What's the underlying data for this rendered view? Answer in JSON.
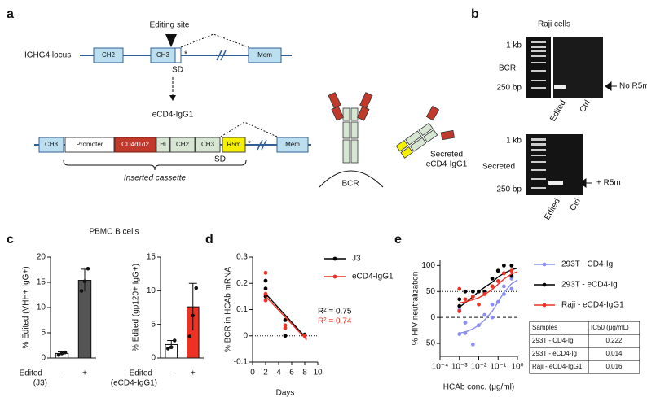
{
  "panel_a": {
    "label": "a",
    "editing_site": "Editing site",
    "locus": "IGHG4 locus",
    "locus_exons": [
      "CH2",
      "CH3",
      "Mem"
    ],
    "stop": "*",
    "sd_top": "SD",
    "product": "eCD4-IgG1",
    "cassette_segments": [
      "CH3",
      "Promoter",
      "CD4d1d2",
      "Hi",
      "CH2",
      "CH3",
      "R5m",
      "Mem"
    ],
    "sd_bottom": "SD",
    "cassette_label": "Inserted cassette",
    "bcr": "BCR",
    "secreted": [
      "Secreted",
      "eCD4-IgG1"
    ]
  },
  "panel_b": {
    "label": "b",
    "title": "Raji cells",
    "gels": [
      {
        "ladder_top": "1 kb",
        "row_label": "BCR",
        "ladder_bottom": "250 bp",
        "band_label": "No R5m",
        "lanes": [
          "Edited",
          "Ctrl"
        ]
      },
      {
        "ladder_top": "1 kb",
        "row_label": "Secreted",
        "ladder_bottom": "250 bp",
        "band_label": "+ R5m",
        "lanes": [
          "Edited",
          "Ctrl"
        ]
      }
    ]
  },
  "panel_c": {
    "label": "c",
    "title": "PBMC B cells"
  },
  "panel_d": {
    "label": "d"
  },
  "panel_e": {
    "label": "e"
  },
  "chart_data": [
    {
      "type": "bar",
      "y_label": "% Edited (VHH+ IgG+)",
      "x_label": "Edited",
      "x_sublabel": "(J3)",
      "categories": [
        "-",
        "+"
      ],
      "values": [
        0.9,
        15.4
      ],
      "errors": [
        0.3,
        2.2
      ],
      "points": [
        [
          0.6,
          0.9,
          1.1
        ],
        [
          13.3,
          15.2,
          17.7
        ]
      ],
      "colors": [
        "#ffffff",
        "#555555"
      ],
      "ylim": [
        0,
        20
      ],
      "yticks": [
        0,
        5,
        10,
        15,
        20
      ]
    },
    {
      "type": "bar",
      "y_label": "% Edited (gp120+ IgG+)",
      "x_label": "Edited",
      "x_sublabel": "(eCD4-IgG1)",
      "categories": [
        "-",
        "+"
      ],
      "values": [
        2.0,
        7.6
      ],
      "errors": [
        0.6,
        3.5
      ],
      "points": [
        [
          1.4,
          1.6,
          2.6
        ],
        [
          3.2,
          6.3,
          10.4
        ]
      ],
      "colors": [
        "#ffffff",
        "#ee3124"
      ],
      "ylim": [
        0,
        15
      ],
      "yticks": [
        0,
        5,
        10,
        15
      ]
    },
    {
      "type": "scatter",
      "x_label": "Days",
      "y_label": "% BCR in HCAb mRNA",
      "xlim": [
        0,
        10
      ],
      "xticks": [
        0,
        2,
        4,
        6,
        8,
        10
      ],
      "ylim": [
        -0.1,
        0.3
      ],
      "yticks": [
        -0.1,
        0,
        0.1,
        0.2,
        0.3
      ],
      "reference_lines": [
        {
          "value": 0,
          "style": "dotted"
        }
      ],
      "series": [
        {
          "name": "J3",
          "color": "#000000",
          "x": [
            2,
            2,
            2,
            5,
            5,
            8
          ],
          "values": [
            0.21,
            0.18,
            0.15,
            0.06,
            0.0,
            0.005
          ],
          "fit": {
            "x": [
              2,
              8.3
            ],
            "values": [
              0.16,
              -0.01
            ]
          },
          "annotation": "R² = 0.75"
        },
        {
          "name": "eCD4-IgG1",
          "color": "#ee3124",
          "x": [
            2,
            2,
            2,
            5,
            5,
            8
          ],
          "values": [
            0.24,
            0.16,
            0.135,
            0.04,
            0.03,
            0.0
          ],
          "fit": {
            "x": [
              2,
              8.3
            ],
            "values": [
              0.15,
              -0.015
            ]
          },
          "annotation": "R² = 0.74"
        }
      ]
    },
    {
      "type": "scatter",
      "x_label": "HCAb conc. (μg/ml)",
      "y_label": "% HIV neutralization",
      "log_x": true,
      "xlim": [
        0.0001,
        1
      ],
      "xticks": [
        {
          "value": 0.0001,
          "label": "10⁻⁴"
        },
        {
          "value": 0.001,
          "label": "10⁻³"
        },
        {
          "value": 0.01,
          "label": "10⁻²"
        },
        {
          "value": 0.1,
          "label": "10⁻¹"
        },
        {
          "value": 1,
          "label": "10⁰"
        }
      ],
      "ylim": [
        -75,
        110
      ],
      "yticks": [
        -50,
        0,
        50,
        100
      ],
      "reference_lines": [
        {
          "value": 0,
          "style": "dashed"
        },
        {
          "value": 50,
          "style": "dotted"
        }
      ],
      "series": [
        {
          "name": "293T - CD4-Ig",
          "color": "#8a8ff0",
          "x": [
            0.001,
            0.001,
            0.002,
            0.002,
            0.005,
            0.01,
            0.02,
            0.05,
            0.05,
            0.1,
            0.2,
            0.2,
            0.5,
            0.5
          ],
          "values": [
            -32,
            15,
            -30,
            -10,
            -52,
            -15,
            5,
            25,
            0,
            30,
            60,
            45,
            75,
            55
          ],
          "fit": {
            "x": [
              0.001,
              0.002,
              0.005,
              0.01,
              0.02,
              0.05,
              0.1,
              0.2,
              0.5,
              1
            ],
            "values": [
              -30,
              -28,
              -22,
              -15,
              -5,
              12,
              30,
              48,
              65,
              72
            ]
          }
        },
        {
          "name": "293T - eCD4-Ig",
          "color": "#000000",
          "x": [
            0.001,
            0.001,
            0.002,
            0.005,
            0.01,
            0.02,
            0.05,
            0.05,
            0.1,
            0.2,
            0.2,
            0.5,
            0.5
          ],
          "values": [
            22,
            35,
            50,
            50,
            50,
            50,
            60,
            75,
            90,
            85,
            100,
            80,
            100
          ],
          "fit": {
            "x": [
              0.001,
              0.002,
              0.005,
              0.01,
              0.02,
              0.05,
              0.1,
              0.2,
              0.5,
              1
            ],
            "values": [
              20,
              28,
              40,
              50,
              58,
              68,
              78,
              85,
              92,
              95
            ]
          }
        },
        {
          "name": "Raji - eCD4-IgG1",
          "color": "#ee3124",
          "x": [
            0.001,
            0.001,
            0.002,
            0.005,
            0.01,
            0.02,
            0.05,
            0.1,
            0.2,
            0.5
          ],
          "values": [
            55,
            12,
            35,
            40,
            25,
            45,
            60,
            70,
            85,
            90
          ],
          "fit": {
            "x": [
              0.001,
              0.002,
              0.005,
              0.01,
              0.02,
              0.05,
              0.1,
              0.2,
              0.5,
              1
            ],
            "values": [
              28,
              30,
              34,
              38,
              44,
              54,
              64,
              74,
              84,
              88
            ]
          }
        }
      ]
    }
  ],
  "table": {
    "header": [
      "Samples",
      "IC50 (μg/mL)"
    ],
    "rows": [
      [
        "293T - CD4-Ig",
        "0.222"
      ],
      [
        "293T - eCD4-Ig",
        "0.014"
      ],
      [
        "Raji - eCD4-IgG1",
        "0.016"
      ]
    ]
  }
}
